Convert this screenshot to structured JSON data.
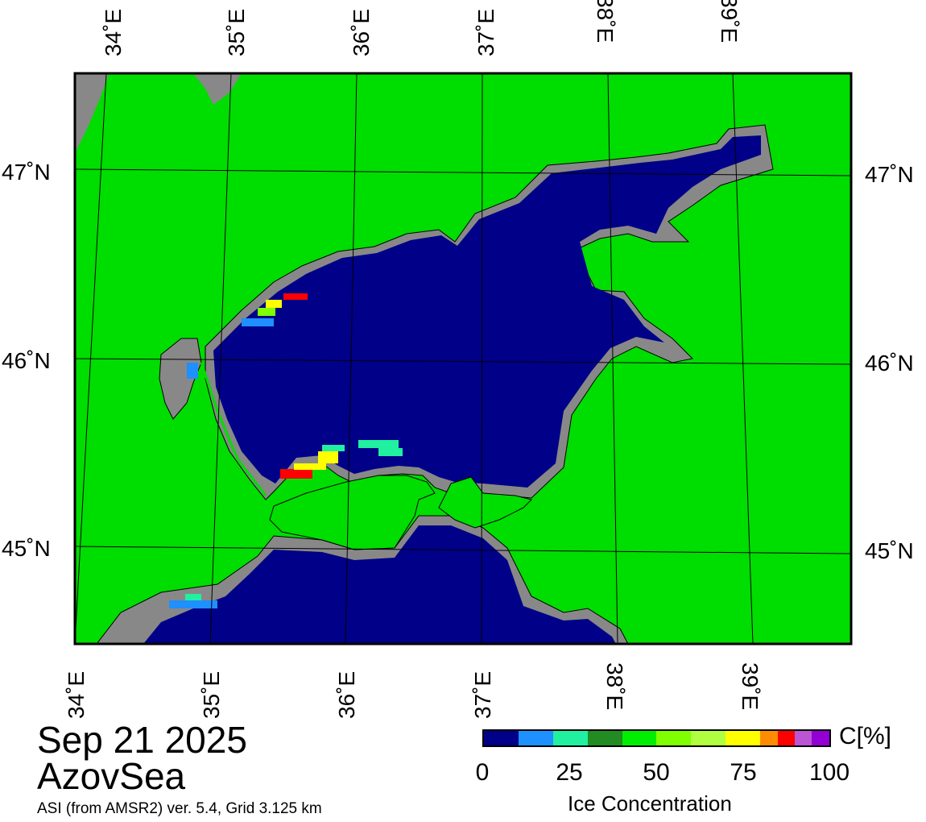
{
  "map": {
    "date": "Sep 21 2025",
    "region": "AzovSea",
    "source": "ASI (from AMSR2) ver. 5.4,  Grid 3.125 km",
    "colors": {
      "land": "#00dd00",
      "water": "#000088",
      "coast_mask": "#888888",
      "frame": "#000000"
    },
    "lon_labels_top": [
      "34˚E",
      "35˚E",
      "36˚E",
      "37˚E",
      "38˚E",
      "39˚E"
    ],
    "lon_labels_bottom": [
      "34˚E",
      "35˚E",
      "36˚E",
      "37˚E",
      "38˚E",
      "39˚E"
    ],
    "lat_labels_left": [
      "47˚N",
      "46˚N",
      "45˚N"
    ],
    "lat_labels_right": [
      "47˚N",
      "46˚N",
      "45˚N"
    ]
  },
  "legend": {
    "title": "Ice Concentration",
    "unit": "C[%]",
    "ticks": [
      "0",
      "25",
      "50",
      "75",
      "100"
    ],
    "colors": [
      "#000088",
      "#1e90ff",
      "#20f0a0",
      "#228b22",
      "#00ee00",
      "#7fff00",
      "#b0ff40",
      "#ffff00",
      "#ff8c00",
      "#ff0000",
      "#ba55d3",
      "#9400d3"
    ]
  }
}
